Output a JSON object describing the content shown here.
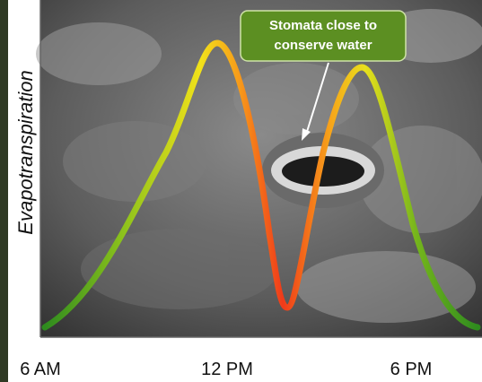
{
  "y_axis_label": "Evapotranspiration",
  "x_axis_labels": [
    "6 AM",
    "12 PM",
    "6 PM"
  ],
  "annotation": {
    "lines": [
      "Stomata close to",
      "conserve water"
    ]
  }
}
